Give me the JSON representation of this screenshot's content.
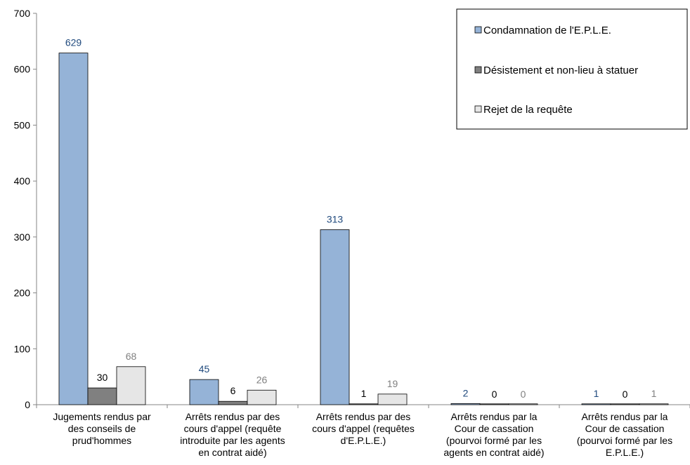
{
  "chart_data": {
    "type": "bar",
    "categories": [
      [
        "Jugements rendus par",
        "des conseils de",
        "prud'hommes"
      ],
      [
        "Arrêts rendus par des",
        "cours d'appel (requête",
        "introduite par les agents",
        "en contrat aidé)"
      ],
      [
        "Arrêts rendus par des",
        "cours d'appel (requêtes",
        "d'E.P.L.E.)"
      ],
      [
        "Arrêts rendus par la",
        "Cour de cassation",
        "(pourvoi formé par les",
        "agents en contrat aidé)"
      ],
      [
        "Arrêts rendus par la",
        "Cour de cassation",
        "(pourvoi formé par les",
        "E.P.L.E.)"
      ]
    ],
    "series": [
      {
        "name": "Condamnation de l'E.P.L.E.",
        "values": [
          629,
          45,
          313,
          2,
          1
        ],
        "color": "#95b3d7",
        "label_color": "#1f497d"
      },
      {
        "name": "Désistement et non-lieu à statuer",
        "values": [
          30,
          6,
          1,
          0,
          0
        ],
        "color": "#808080",
        "label_color": "#000000"
      },
      {
        "name": "Rejet de la requête",
        "values": [
          68,
          26,
          19,
          0,
          1
        ],
        "color": "#e6e6e6",
        "label_color": "#808080"
      }
    ],
    "ylim": [
      0,
      700
    ],
    "yticks": [
      0,
      100,
      200,
      300,
      400,
      500,
      600,
      700
    ],
    "legend_position": "top-right",
    "grid": false
  }
}
